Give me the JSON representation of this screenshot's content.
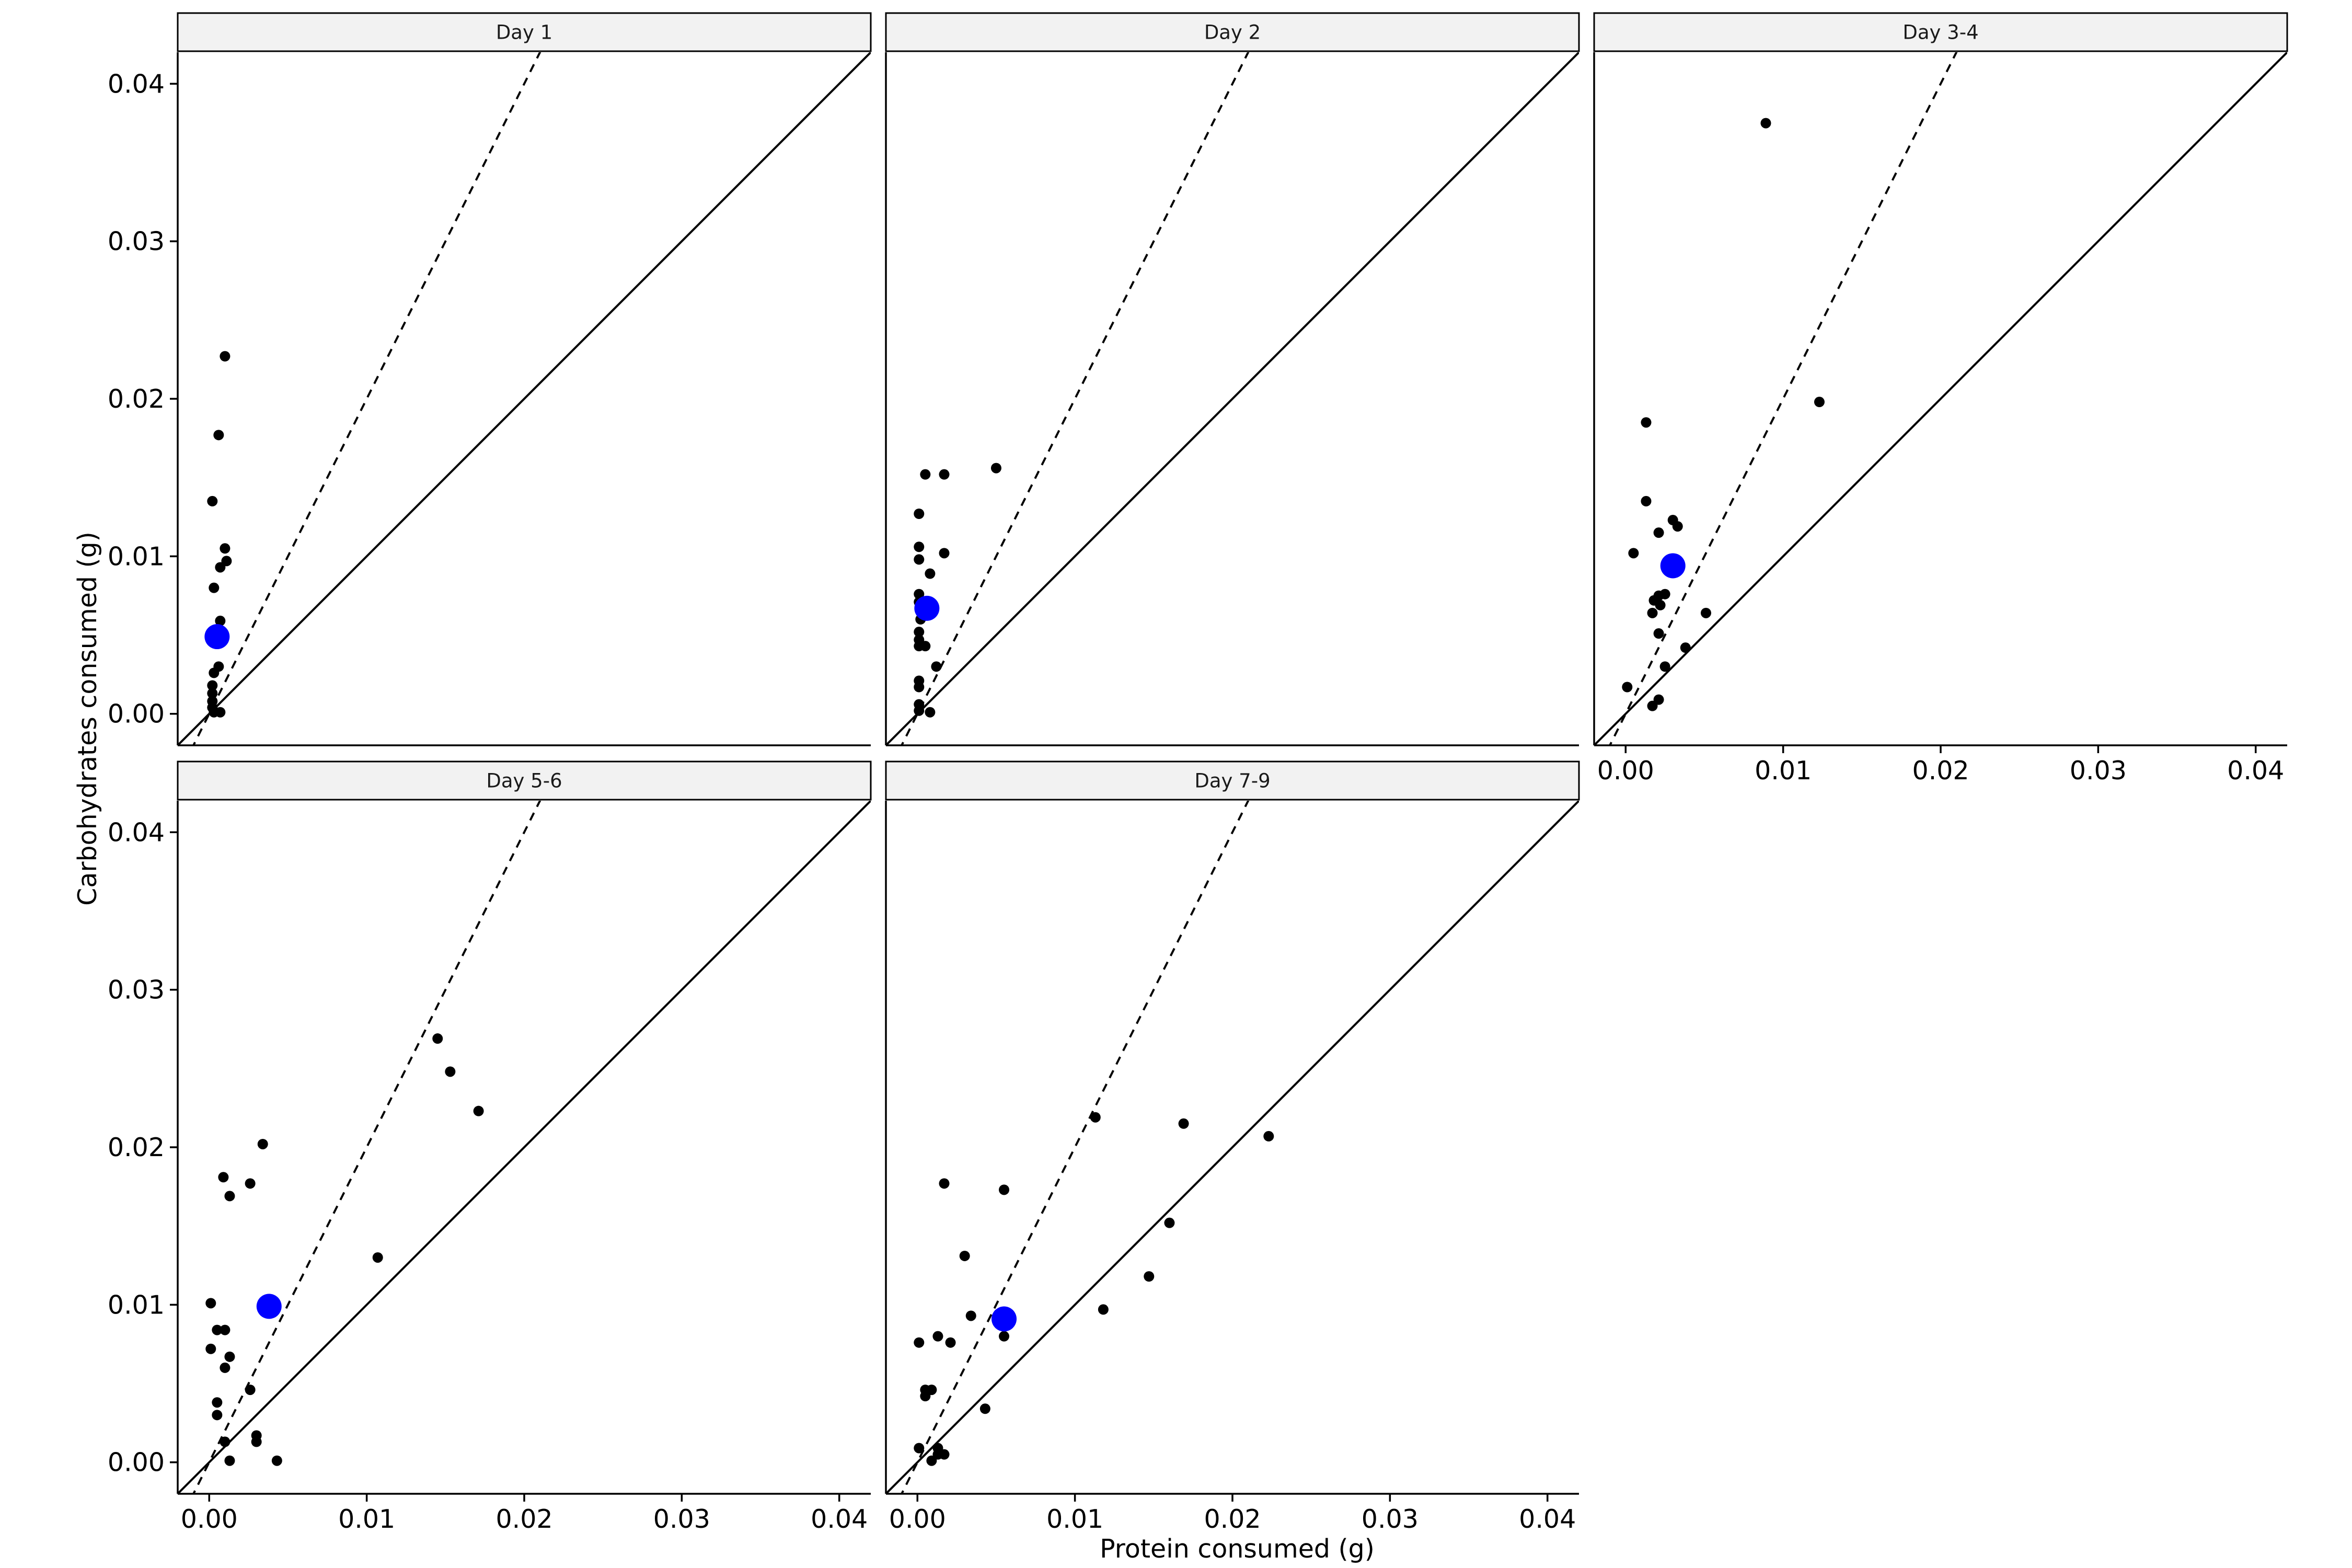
{
  "chart_data": {
    "type": "scatter",
    "xlabel": "Protein consumed (g)",
    "ylabel": "Carbohydrates consumed (g)",
    "xlim": [
      -0.002,
      0.042
    ],
    "ylim": [
      -0.002,
      0.042
    ],
    "x_ticks": [
      0.0,
      0.01,
      0.02,
      0.03,
      0.04
    ],
    "x_tick_labels": [
      "0.00",
      "0.01",
      "0.02",
      "0.03",
      "0.04"
    ],
    "y_ticks": [
      0.0,
      0.01,
      0.02,
      0.03,
      0.04
    ],
    "y_tick_labels": [
      "0.00",
      "0.01",
      "0.02",
      "0.03",
      "0.04"
    ],
    "grid": false,
    "legend": "none",
    "colors": {
      "points": "#000000",
      "mean": "#0000ff",
      "strip": "#f2f2f2"
    },
    "reference_lines": [
      {
        "style": "solid",
        "slope": 1,
        "intercept": 0
      },
      {
        "style": "dashed",
        "slope": 2,
        "intercept": 0
      }
    ],
    "panels": [
      {
        "title": "Day 1",
        "mean": [
          0.0005,
          0.0049
        ],
        "points": [
          [
            0.001,
            0.0227
          ],
          [
            0.0006,
            0.0177
          ],
          [
            0.0002,
            0.0135
          ],
          [
            0.001,
            0.0105
          ],
          [
            0.0011,
            0.0097
          ],
          [
            0.0007,
            0.0093
          ],
          [
            0.0003,
            0.008
          ],
          [
            0.0007,
            0.0059
          ],
          [
            0.0006,
            0.003
          ],
          [
            0.0003,
            0.0026
          ],
          [
            0.0002,
            0.0018
          ],
          [
            0.0002,
            0.0013
          ],
          [
            0.0002,
            0.0008
          ],
          [
            0.0002,
            0.0004
          ],
          [
            0.0003,
            0.0001
          ],
          [
            0.0007,
            0.0001
          ]
        ]
      },
      {
        "title": "Day 2",
        "mean": [
          0.0006,
          0.0067
        ],
        "points": [
          [
            0.005,
            0.0156
          ],
          [
            0.0005,
            0.0152
          ],
          [
            0.0017,
            0.0152
          ],
          [
            0.0001,
            0.0127
          ],
          [
            0.0001,
            0.0106
          ],
          [
            0.0017,
            0.0102
          ],
          [
            0.0001,
            0.0098
          ],
          [
            0.0008,
            0.0089
          ],
          [
            0.0001,
            0.0076
          ],
          [
            0.0001,
            0.0071
          ],
          [
            0.0002,
            0.006
          ],
          [
            0.0001,
            0.0052
          ],
          [
            0.0001,
            0.0047
          ],
          [
            0.0001,
            0.0043
          ],
          [
            0.0005,
            0.0043
          ],
          [
            0.0012,
            0.003
          ],
          [
            0.0001,
            0.0021
          ],
          [
            0.0001,
            0.0017
          ],
          [
            0.0001,
            0.0006
          ],
          [
            0.0001,
            0.0002
          ],
          [
            0.0008,
            0.0001
          ]
        ]
      },
      {
        "title": "Day 3-4",
        "mean": [
          0.003,
          0.0094
        ],
        "points": [
          [
            0.0089,
            0.0375
          ],
          [
            0.0123,
            0.0198
          ],
          [
            0.0013,
            0.0185
          ],
          [
            0.0013,
            0.0135
          ],
          [
            0.003,
            0.0123
          ],
          [
            0.0033,
            0.0119
          ],
          [
            0.0021,
            0.0115
          ],
          [
            0.0005,
            0.0102
          ],
          [
            0.0025,
            0.0076
          ],
          [
            0.0021,
            0.0075
          ],
          [
            0.0018,
            0.0072
          ],
          [
            0.0022,
            0.0069
          ],
          [
            0.0017,
            0.0064
          ],
          [
            0.0051,
            0.0064
          ],
          [
            0.0021,
            0.0051
          ],
          [
            0.0038,
            0.0042
          ],
          [
            0.0025,
            0.003
          ],
          [
            0.0001,
            0.0017
          ],
          [
            0.0021,
            0.0009
          ],
          [
            0.0017,
            0.0005
          ]
        ]
      },
      {
        "title": "Day 5-6",
        "mean": [
          0.0038,
          0.0099
        ],
        "points": [
          [
            0.0145,
            0.0269
          ],
          [
            0.0153,
            0.0248
          ],
          [
            0.0171,
            0.0223
          ],
          [
            0.0034,
            0.0202
          ],
          [
            0.0009,
            0.0181
          ],
          [
            0.0026,
            0.0177
          ],
          [
            0.0013,
            0.0169
          ],
          [
            0.0107,
            0.013
          ],
          [
            0.0001,
            0.0101
          ],
          [
            0.0005,
            0.0084
          ],
          [
            0.001,
            0.0084
          ],
          [
            0.0001,
            0.0072
          ],
          [
            0.0013,
            0.0067
          ],
          [
            0.001,
            0.006
          ],
          [
            0.0026,
            0.0046
          ],
          [
            0.0005,
            0.0038
          ],
          [
            0.0005,
            0.003
          ],
          [
            0.003,
            0.0017
          ],
          [
            0.003,
            0.0013
          ],
          [
            0.001,
            0.0013
          ],
          [
            0.0013,
            0.0001
          ],
          [
            0.0043,
            0.0001
          ]
        ]
      },
      {
        "title": "Day 7-9",
        "mean": [
          0.0055,
          0.0091
        ],
        "points": [
          [
            0.0113,
            0.0219
          ],
          [
            0.0169,
            0.0215
          ],
          [
            0.0223,
            0.0207
          ],
          [
            0.0017,
            0.0177
          ],
          [
            0.0055,
            0.0173
          ],
          [
            0.016,
            0.0152
          ],
          [
            0.003,
            0.0131
          ],
          [
            0.0147,
            0.0118
          ],
          [
            0.0118,
            0.0097
          ],
          [
            0.0034,
            0.0093
          ],
          [
            0.0013,
            0.008
          ],
          [
            0.0055,
            0.008
          ],
          [
            0.0021,
            0.0076
          ],
          [
            0.0001,
            0.0076
          ],
          [
            0.0005,
            0.0046
          ],
          [
            0.0009,
            0.0046
          ],
          [
            0.0005,
            0.0042
          ],
          [
            0.0043,
            0.0034
          ],
          [
            0.0001,
            0.0009
          ],
          [
            0.0013,
            0.0009
          ],
          [
            0.0017,
            0.0005
          ],
          [
            0.0013,
            0.0005
          ],
          [
            0.0009,
            0.0001
          ]
        ]
      }
    ]
  }
}
